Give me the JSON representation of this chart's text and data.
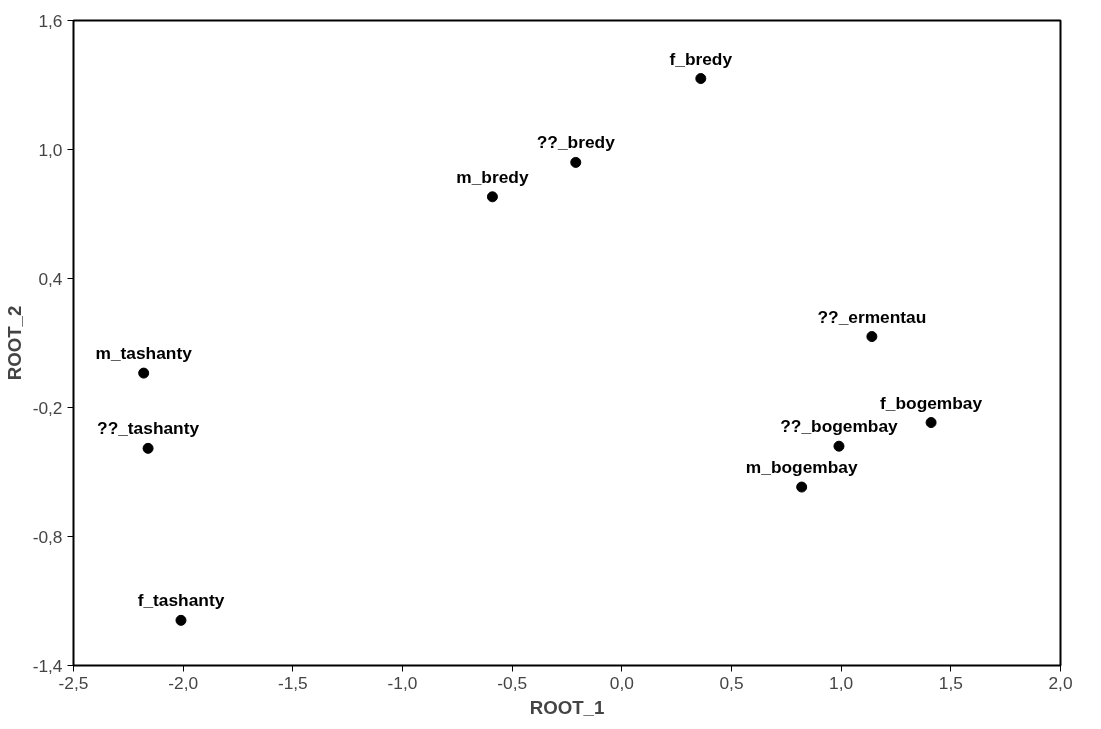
{
  "chart_data": {
    "type": "scatter",
    "xlabel": "ROOT_1",
    "ylabel": "ROOT_2",
    "x": [
      0.36,
      -0.21,
      -0.59,
      1.14,
      -2.18,
      -2.16,
      1.41,
      0.99,
      0.82,
      -2.01
    ],
    "series": [
      {
        "color": "#000000",
        "values": [
          1.33,
          0.94,
          0.78,
          0.13,
          -0.04,
          -0.39,
          -0.27,
          -0.38,
          -0.57,
          -1.19
        ]
      }
    ],
    "marker": "circle",
    "grid": false,
    "xlim": [
      -2.5,
      2.0
    ],
    "xticks": [
      {
        "value": -2.5,
        "label": "-2,5"
      },
      {
        "value": -2.0,
        "label": "-2,0"
      },
      {
        "value": -1.5,
        "label": "-1,5"
      },
      {
        "value": -1.0,
        "label": "-1,0"
      },
      {
        "value": -0.5,
        "label": "-0,5"
      },
      {
        "value": 0.0,
        "label": "0,0"
      },
      {
        "value": 0.5,
        "label": "0,5"
      },
      {
        "value": 1.0,
        "label": "1,0"
      },
      {
        "value": 1.5,
        "label": "1,5"
      },
      {
        "value": 2.0,
        "label": "2,0"
      }
    ],
    "ylim": [
      -1.4,
      1.6
    ],
    "yticks": [
      {
        "value": -1.4,
        "label": "-1,4"
      },
      {
        "value": -0.8,
        "label": "-0,8"
      },
      {
        "value": -0.2,
        "label": "-0,2"
      },
      {
        "value": 0.4,
        "label": "0,4"
      },
      {
        "value": 1.0,
        "label": "1,0"
      },
      {
        "value": 1.6,
        "label": "1,6"
      }
    ],
    "annotations": [
      {
        "text": "f_bredy",
        "x": 0.36,
        "y": 1.33
      },
      {
        "text": "??_bredy",
        "x": -0.21,
        "y": 0.94
      },
      {
        "text": "m_bredy",
        "x": -0.59,
        "y": 0.78
      },
      {
        "text": "??_ermentau",
        "x": 1.14,
        "y": 0.13
      },
      {
        "text": "m_tashanty",
        "x": -2.18,
        "y": -0.04
      },
      {
        "text": "??_tashanty",
        "x": -2.16,
        "y": -0.39
      },
      {
        "text": "f_bogembay",
        "x": 1.41,
        "y": -0.27
      },
      {
        "text": "??_bogembay",
        "x": 0.99,
        "y": -0.38
      },
      {
        "text": "m_bogembay",
        "x": 0.82,
        "y": -0.57
      },
      {
        "text": "f_tashanty",
        "x": -2.01,
        "y": -1.19
      }
    ]
  }
}
